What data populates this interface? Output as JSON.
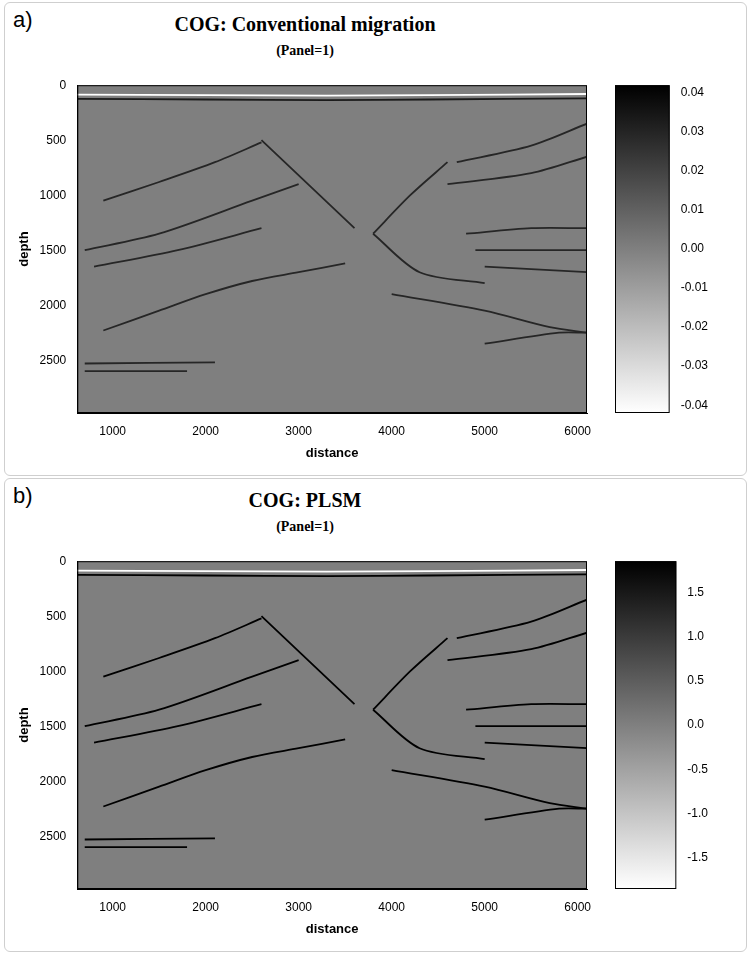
{
  "chart_data": [
    {
      "type": "line",
      "panel": "a)",
      "title": "COG: Conventional migration",
      "subtitle": "(Panel=1)",
      "x_label": "distance",
      "y_label": "depth",
      "xlim": [
        620,
        6100
      ],
      "xticks": [
        1000,
        2000,
        3000,
        4000,
        5000,
        6000
      ],
      "ylim": [
        0,
        2980
      ],
      "yticks": [
        0,
        500,
        1000,
        1500,
        2000,
        2500
      ],
      "grid": false,
      "color": "#262626",
      "colorbar": {
        "lim": [
          -0.042,
          0.042
        ],
        "ticks": [
          0.04,
          0.03,
          0.02,
          0.01,
          {
            "value": 0,
            "label": "0.00"
          },
          -0.01,
          -0.02,
          -0.03,
          -0.04
        ]
      },
      "series": [
        {
          "color": "#ffffff",
          "x": [
            620,
            2000,
            3300,
            4400,
            6100
          ],
          "values": [
            85,
            90,
            95,
            90,
            80
          ]
        },
        {
          "color": "#1a1a1a",
          "x": [
            620,
            2000,
            3300,
            4400,
            6100
          ],
          "values": [
            125,
            130,
            135,
            130,
            120
          ]
        },
        {
          "x": [
            900,
            1500,
            2000,
            2500,
            3000,
            3500
          ],
          "values": [
            2230,
            2050,
            1900,
            1780,
            1700,
            1620
          ]
        },
        {
          "x": [
            900,
            1500,
            2100,
            2600
          ],
          "values": [
            1050,
            880,
            700,
            520
          ]
        },
        {
          "x": [
            700,
            1500,
            2500,
            3000
          ],
          "values": [
            1500,
            1350,
            1050,
            900
          ]
        },
        {
          "x": [
            800,
            1700,
            2600
          ],
          "values": [
            1650,
            1500,
            1300
          ]
        },
        {
          "x": [
            2600,
            3100,
            3600
          ],
          "values": [
            500,
            900,
            1300
          ]
        },
        {
          "x": [
            4600,
            4200,
            3800
          ],
          "values": [
            700,
            1000,
            1350
          ]
        },
        {
          "x": [
            3800,
            4300,
            5000
          ],
          "values": [
            1350,
            1700,
            1800
          ]
        },
        {
          "x": [
            4700,
            5500,
            6100
          ],
          "values": [
            700,
            550,
            350
          ]
        },
        {
          "x": [
            4600,
            5500,
            6100
          ],
          "values": [
            900,
            800,
            650
          ]
        },
        {
          "x": [
            4800,
            5500,
            6100
          ],
          "values": [
            1350,
            1300,
            1300
          ]
        },
        {
          "x": [
            4900,
            6100
          ],
          "values": [
            1500,
            1500
          ]
        },
        {
          "x": [
            5000,
            6100
          ],
          "values": [
            1650,
            1700
          ]
        },
        {
          "x": [
            4000,
            5000,
            5700,
            6100
          ],
          "values": [
            1900,
            2050,
            2200,
            2250
          ]
        },
        {
          "x": [
            5000,
            5800,
            6100
          ],
          "values": [
            2350,
            2250,
            2250
          ]
        },
        {
          "x": [
            700,
            2100
          ],
          "values": [
            2530,
            2520
          ]
        },
        {
          "x": [
            700,
            1800
          ],
          "values": [
            2600,
            2600
          ]
        }
      ]
    },
    {
      "type": "line",
      "panel": "b)",
      "title": "COG: PLSM",
      "subtitle": "(Panel=1)",
      "x_label": "distance",
      "y_label": "depth",
      "xlim": [
        620,
        6100
      ],
      "xticks": [
        1000,
        2000,
        3000,
        4000,
        5000,
        6000
      ],
      "ylim": [
        0,
        2980
      ],
      "yticks": [
        0,
        500,
        1000,
        1500,
        2000,
        2500
      ],
      "grid": false,
      "color": "#000000",
      "colorbar": {
        "lim": [
          -1.85,
          1.85
        ],
        "ticks": [
          1.5,
          {
            "value": 1,
            "label": "1.0"
          },
          0.5,
          {
            "value": 0,
            "label": "0.0"
          },
          -0.5,
          {
            "value": -1,
            "label": "-1.0"
          },
          -1.5
        ]
      },
      "series": [
        {
          "color": "#ffffff",
          "x": [
            620,
            2000,
            3300,
            4400,
            6100
          ],
          "values": [
            85,
            90,
            95,
            90,
            80
          ]
        },
        {
          "color": "#000000",
          "x": [
            620,
            2000,
            3300,
            4400,
            6100
          ],
          "values": [
            125,
            130,
            135,
            130,
            120
          ]
        },
        {
          "x": [
            900,
            1500,
            2000,
            2500,
            3000,
            3500
          ],
          "values": [
            2230,
            2050,
            1900,
            1780,
            1700,
            1620
          ]
        },
        {
          "x": [
            900,
            1500,
            2100,
            2600
          ],
          "values": [
            1050,
            880,
            700,
            520
          ]
        },
        {
          "x": [
            700,
            1500,
            2500,
            3000
          ],
          "values": [
            1500,
            1350,
            1050,
            900
          ]
        },
        {
          "x": [
            800,
            1700,
            2600
          ],
          "values": [
            1650,
            1500,
            1300
          ]
        },
        {
          "x": [
            2600,
            3100,
            3600
          ],
          "values": [
            500,
            900,
            1300
          ]
        },
        {
          "x": [
            4600,
            4200,
            3800
          ],
          "values": [
            700,
            1000,
            1350
          ]
        },
        {
          "x": [
            3800,
            4300,
            5000
          ],
          "values": [
            1350,
            1700,
            1800
          ]
        },
        {
          "x": [
            4700,
            5500,
            6100
          ],
          "values": [
            700,
            550,
            350
          ]
        },
        {
          "x": [
            4600,
            5500,
            6100
          ],
          "values": [
            900,
            800,
            650
          ]
        },
        {
          "x": [
            4800,
            5500,
            6100
          ],
          "values": [
            1350,
            1300,
            1300
          ]
        },
        {
          "x": [
            4900,
            6100
          ],
          "values": [
            1500,
            1500
          ]
        },
        {
          "x": [
            5000,
            6100
          ],
          "values": [
            1650,
            1700
          ]
        },
        {
          "x": [
            4000,
            5000,
            5700,
            6100
          ],
          "values": [
            1900,
            2050,
            2200,
            2250
          ]
        },
        {
          "x": [
            5000,
            5800,
            6100
          ],
          "values": [
            2350,
            2250,
            2250
          ]
        },
        {
          "x": [
            700,
            2100
          ],
          "values": [
            2530,
            2520
          ]
        },
        {
          "x": [
            700,
            1800
          ],
          "values": [
            2600,
            2600
          ]
        }
      ]
    }
  ]
}
